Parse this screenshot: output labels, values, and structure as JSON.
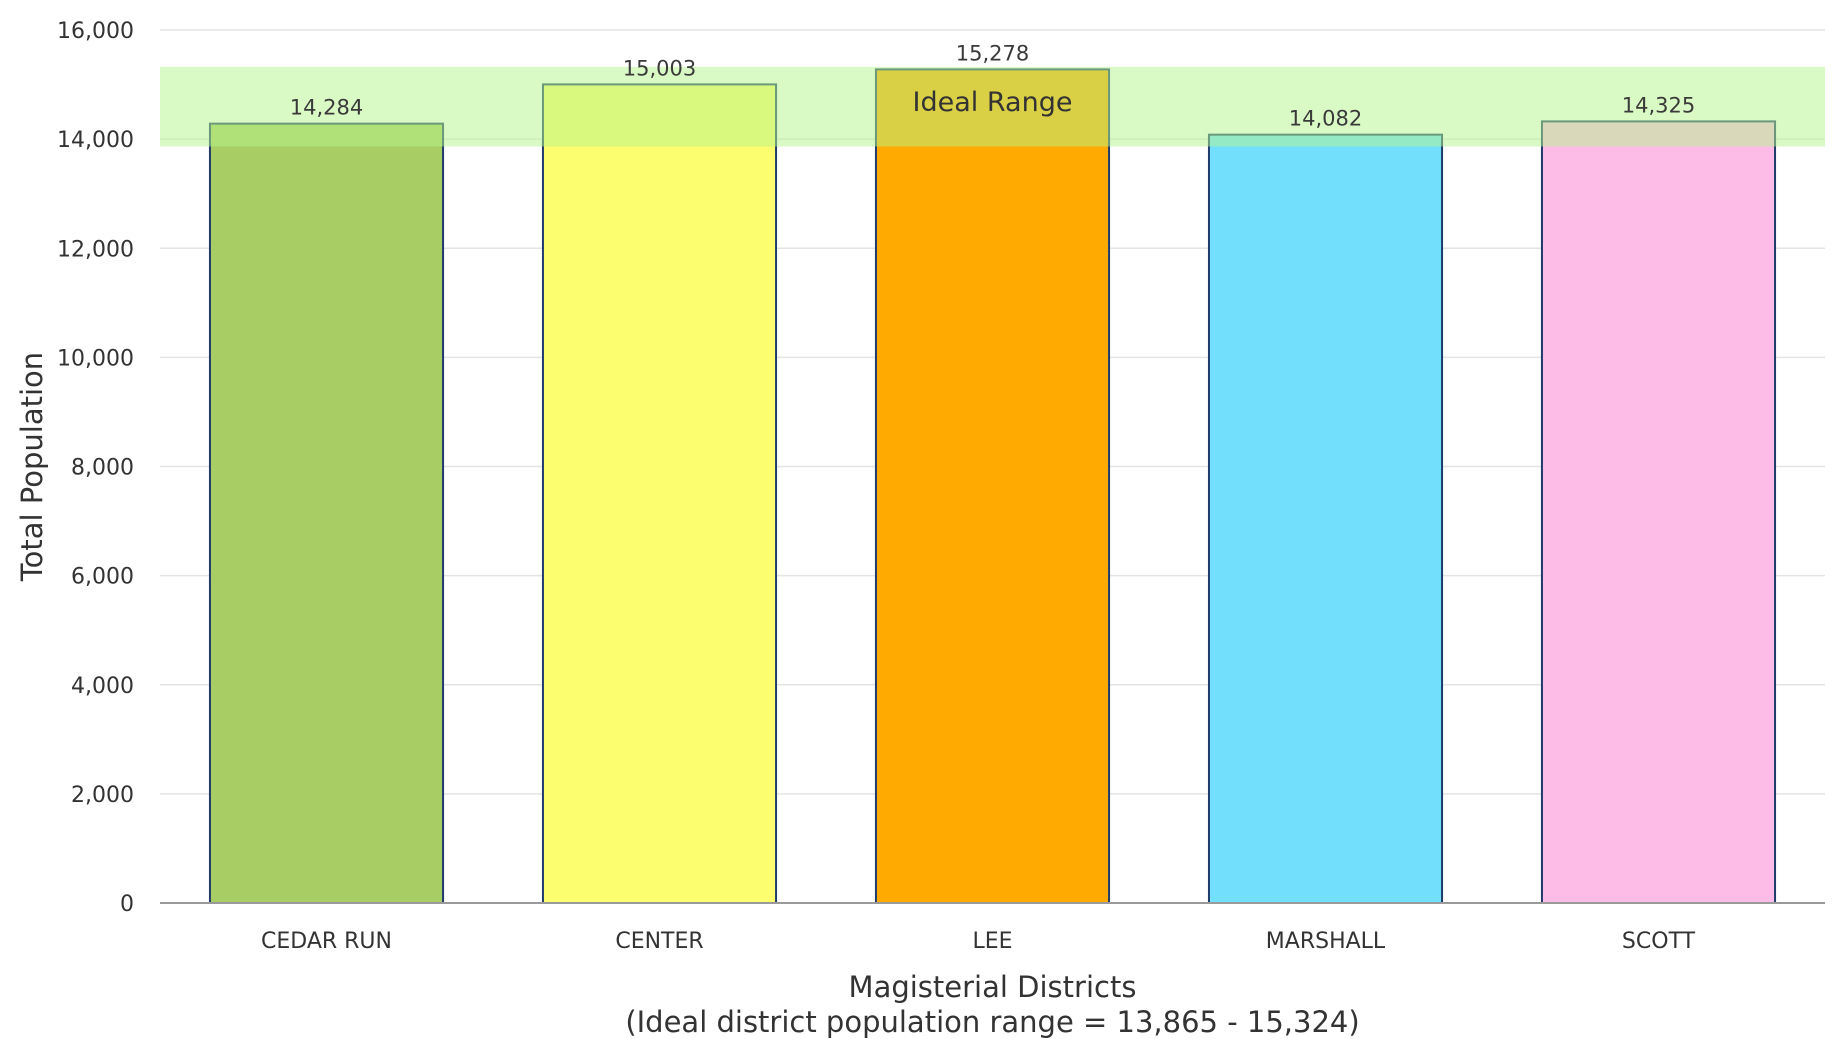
{
  "chart_data": {
    "type": "bar",
    "categories": [
      "CEDAR RUN",
      "CENTER",
      "LEE",
      "MARSHALL",
      "SCOTT"
    ],
    "values": [
      14284,
      15003,
      15278,
      14082,
      14325
    ],
    "data_labels": [
      "14,284",
      "15,003",
      "15,278",
      "14,082",
      "14,325"
    ],
    "bar_colors": [
      "#a9cd65",
      "#fdfd70",
      "#ffaa00",
      "#72dffc",
      "#fdbbe8"
    ],
    "bar_outline_color": "#1f3a6b",
    "ylabel": "Total Population",
    "xlabel": "Magisterial Districts",
    "xlabel_sub": "(Ideal district population range = 13,865 - 15,324)",
    "ylim": [
      0,
      16000
    ],
    "yticks": [
      0,
      2000,
      4000,
      6000,
      8000,
      10000,
      12000,
      14000,
      16000
    ],
    "ytick_labels": [
      "0",
      "2,000",
      "4,000",
      "6,000",
      "8,000",
      "10,000",
      "12,000",
      "14,000",
      "16,000"
    ],
    "grid": true,
    "band": {
      "label": "Ideal Range",
      "low": 13865,
      "high": 15324,
      "color": "#b5f58c"
    }
  }
}
